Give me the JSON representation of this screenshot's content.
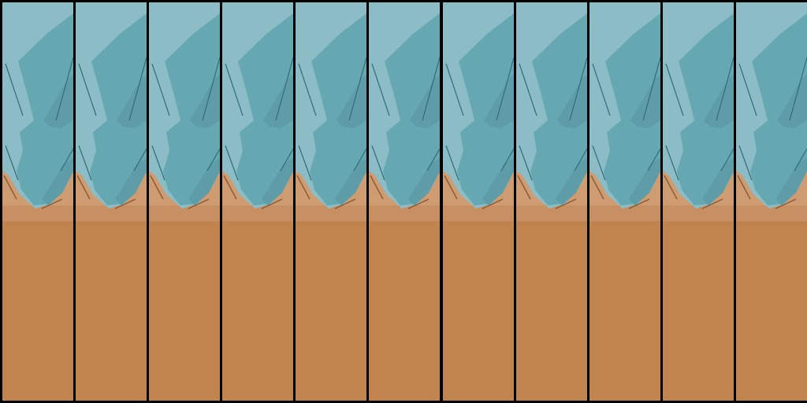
{
  "sprite_sheet": {
    "frame_count": 11,
    "background_color": "#000000",
    "frame_border_color": "#000000",
    "colors": {
      "ice_light": "#8CBDC6",
      "ice_mid": "#65A8B2",
      "ice_dark": "#5E9DA8",
      "ice_crack": "#2F6E78",
      "sand_light": "#CF9C72",
      "sand_band": "#C78F62",
      "sand_main": "#C2844F",
      "sand_shadow": "#8A5A34"
    },
    "frames": [
      {
        "name": "frame-1"
      },
      {
        "name": "frame-2"
      },
      {
        "name": "frame-3"
      },
      {
        "name": "frame-4"
      },
      {
        "name": "frame-5"
      },
      {
        "name": "frame-6"
      },
      {
        "name": "frame-7"
      },
      {
        "name": "frame-8"
      },
      {
        "name": "frame-9"
      },
      {
        "name": "frame-10"
      },
      {
        "name": "frame-11"
      }
    ]
  }
}
